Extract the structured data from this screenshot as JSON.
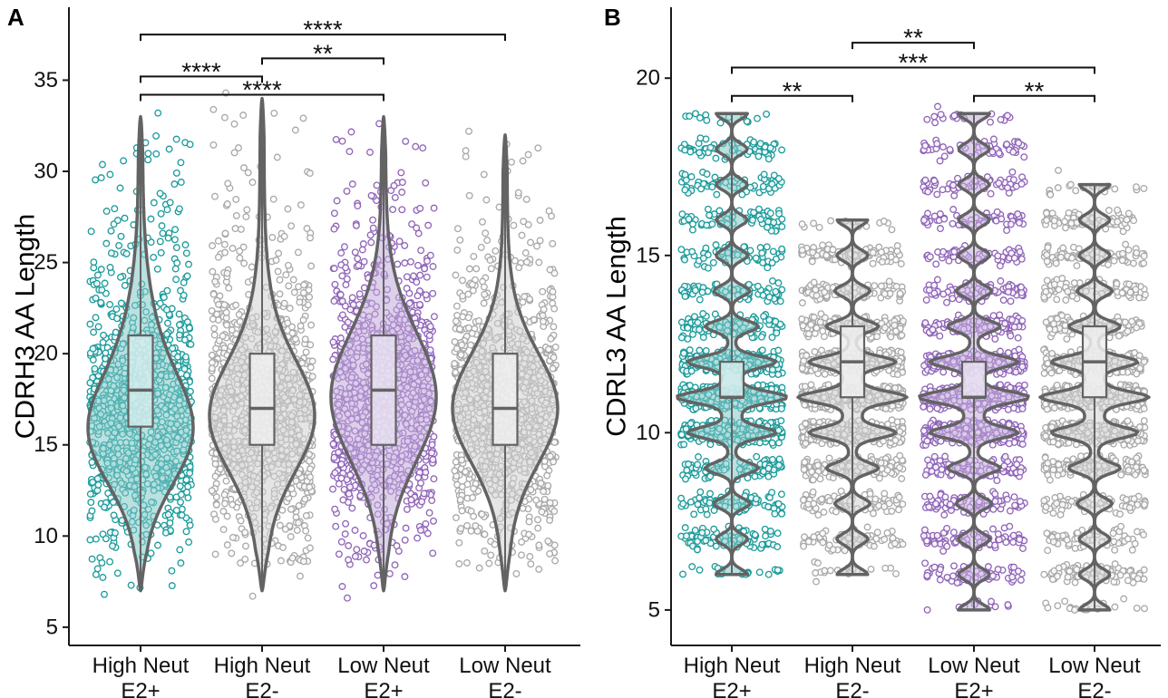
{
  "panels": [
    {
      "letter": "A",
      "type": "violin+box+jitter",
      "ylabel": "CDRH3 AA Length",
      "ylim": [
        4,
        39
      ],
      "yticks": [
        5,
        10,
        15,
        20,
        25,
        30,
        35
      ],
      "integer_jitter": false,
      "groups": [
        {
          "name": "High Neut E2+",
          "line1": "High Neut",
          "line2": "E2+",
          "color": "#1a9a9a",
          "min": 7,
          "q1": 16,
          "median": 18,
          "q3": 21,
          "max": 33,
          "whisker_low": 8.5,
          "whisker_high": 28.5,
          "mode": 15.5,
          "outliers": [
            6.8,
            7.3,
            33.2
          ]
        },
        {
          "name": "High Neut E2-",
          "line1": "High Neut",
          "line2": "E2-",
          "color": "#a8a8a8",
          "min": 7,
          "q1": 15,
          "median": 17,
          "q3": 20,
          "max": 34,
          "whisker_low": 7.5,
          "whisker_high": 27.5,
          "mode": 16.5,
          "outliers": [
            34.3,
            6.7
          ]
        },
        {
          "name": "Low Neut E2+",
          "line1": "Low Neut",
          "line2": "E2+",
          "color": "#8e63b8",
          "min": 7,
          "q1": 15,
          "median": 18,
          "q3": 21,
          "max": 33,
          "whisker_low": 7.5,
          "whisker_high": 29.5,
          "mode": 17.5,
          "outliers": [
            6.6
          ]
        },
        {
          "name": "Low Neut E2-",
          "line1": "Low Neut",
          "line2": "E2-",
          "color": "#a8a8a8",
          "min": 7,
          "q1": 15,
          "median": 17,
          "q3": 20,
          "max": 32,
          "whisker_low": 7.5,
          "whisker_high": 27.5,
          "mode": 17,
          "outliers": [
            32.2
          ]
        }
      ],
      "comparisons": [
        {
          "from": 0,
          "to": 3,
          "label": "****",
          "y": 37.5
        },
        {
          "from": 0,
          "to": 1,
          "label": "****",
          "y": 35.2
        },
        {
          "from": 1,
          "to": 2,
          "label": "**",
          "y": 36.2
        },
        {
          "from": 0,
          "to": 2,
          "label": "****",
          "y": 34.2
        }
      ]
    },
    {
      "letter": "B",
      "type": "violin+box+jitter",
      "ylabel": "CDRL3 AA Length",
      "ylim": [
        4,
        22
      ],
      "yticks": [
        5,
        10,
        15,
        20
      ],
      "integer_jitter": true,
      "groups": [
        {
          "name": "High Neut E2+",
          "line1": "High Neut",
          "line2": "E2+",
          "color": "#1a9a9a",
          "min": 6,
          "q1": 11,
          "median": 11,
          "q3": 12,
          "max": 19,
          "whisker_low": 9.5,
          "whisker_high": 13.5,
          "mode": 11,
          "outliers": [
            19
          ]
        },
        {
          "name": "High Neut E2-",
          "line1": "High Neut",
          "line2": "E2-",
          "color": "#a8a8a8",
          "min": 6,
          "q1": 11,
          "median": 12,
          "q3": 13,
          "max": 16,
          "whisker_low": 9.5,
          "whisker_high": 14.5,
          "mode": 11,
          "outliers": [
            5.8
          ]
        },
        {
          "name": "Low Neut E2+",
          "line1": "Low Neut",
          "line2": "E2+",
          "color": "#8e63b8",
          "min": 5,
          "q1": 11,
          "median": 11,
          "q3": 12,
          "max": 19,
          "whisker_low": 9.5,
          "whisker_high": 13.5,
          "mode": 11,
          "outliers": [
            19.2,
            5.1
          ]
        },
        {
          "name": "Low Neut E2-",
          "line1": "Low Neut",
          "line2": "E2-",
          "color": "#a8a8a8",
          "min": 5,
          "q1": 11,
          "median": 12,
          "q3": 13,
          "max": 17,
          "whisker_low": 9.5,
          "whisker_high": 14.5,
          "mode": 11,
          "outliers": [
            17.4,
            5.1
          ]
        }
      ],
      "comparisons": [
        {
          "from": 1,
          "to": 2,
          "label": "**",
          "y": 21.0
        },
        {
          "from": 0,
          "to": 3,
          "label": "***",
          "y": 20.3
        },
        {
          "from": 0,
          "to": 1,
          "label": "**",
          "y": 19.5
        },
        {
          "from": 2,
          "to": 3,
          "label": "**",
          "y": 19.5
        }
      ]
    }
  ],
  "chart_data": [
    {
      "type": "violin",
      "title": "",
      "panel_label": "A",
      "xlabel": "",
      "ylabel": "CDRH3 AA Length",
      "categories": [
        "High Neut E2+",
        "High Neut E2-",
        "Low Neut E2+",
        "Low Neut E2-"
      ],
      "series": [
        {
          "name": "median",
          "values": [
            18,
            17,
            18,
            17
          ]
        },
        {
          "name": "q1",
          "values": [
            16,
            15,
            15,
            15
          ]
        },
        {
          "name": "q3",
          "values": [
            21,
            20,
            21,
            20
          ]
        },
        {
          "name": "min",
          "values": [
            7,
            7,
            7,
            7
          ]
        },
        {
          "name": "max",
          "values": [
            33,
            34,
            33,
            32
          ]
        }
      ],
      "ylim": [
        4,
        39
      ],
      "yticks": [
        5,
        10,
        15,
        20,
        25,
        30,
        35
      ],
      "significance": [
        {
          "groups": [
            "High Neut E2+",
            "Low Neut E2-"
          ],
          "label": "****"
        },
        {
          "groups": [
            "High Neut E2+",
            "High Neut E2-"
          ],
          "label": "****"
        },
        {
          "groups": [
            "High Neut E2-",
            "Low Neut E2+"
          ],
          "label": "**"
        },
        {
          "groups": [
            "High Neut E2+",
            "Low Neut E2+"
          ],
          "label": "****"
        }
      ]
    },
    {
      "type": "violin",
      "title": "",
      "panel_label": "B",
      "xlabel": "",
      "ylabel": "CDRL3 AA Length",
      "categories": [
        "High Neut E2+",
        "High Neut E2-",
        "Low Neut E2+",
        "Low Neut E2-"
      ],
      "series": [
        {
          "name": "median",
          "values": [
            11,
            12,
            11,
            12
          ]
        },
        {
          "name": "q1",
          "values": [
            11,
            11,
            11,
            11
          ]
        },
        {
          "name": "q3",
          "values": [
            12,
            13,
            12,
            13
          ]
        },
        {
          "name": "min",
          "values": [
            6,
            6,
            5,
            5
          ]
        },
        {
          "name": "max",
          "values": [
            19,
            16,
            19,
            17
          ]
        }
      ],
      "ylim": [
        4,
        22
      ],
      "yticks": [
        5,
        10,
        15,
        20
      ],
      "significance": [
        {
          "groups": [
            "High Neut E2-",
            "Low Neut E2+"
          ],
          "label": "**"
        },
        {
          "groups": [
            "High Neut E2+",
            "Low Neut E2-"
          ],
          "label": "***"
        },
        {
          "groups": [
            "High Neut E2+",
            "High Neut E2-"
          ],
          "label": "**"
        },
        {
          "groups": [
            "Low Neut E2+",
            "Low Neut E2-"
          ],
          "label": "**"
        }
      ]
    }
  ]
}
